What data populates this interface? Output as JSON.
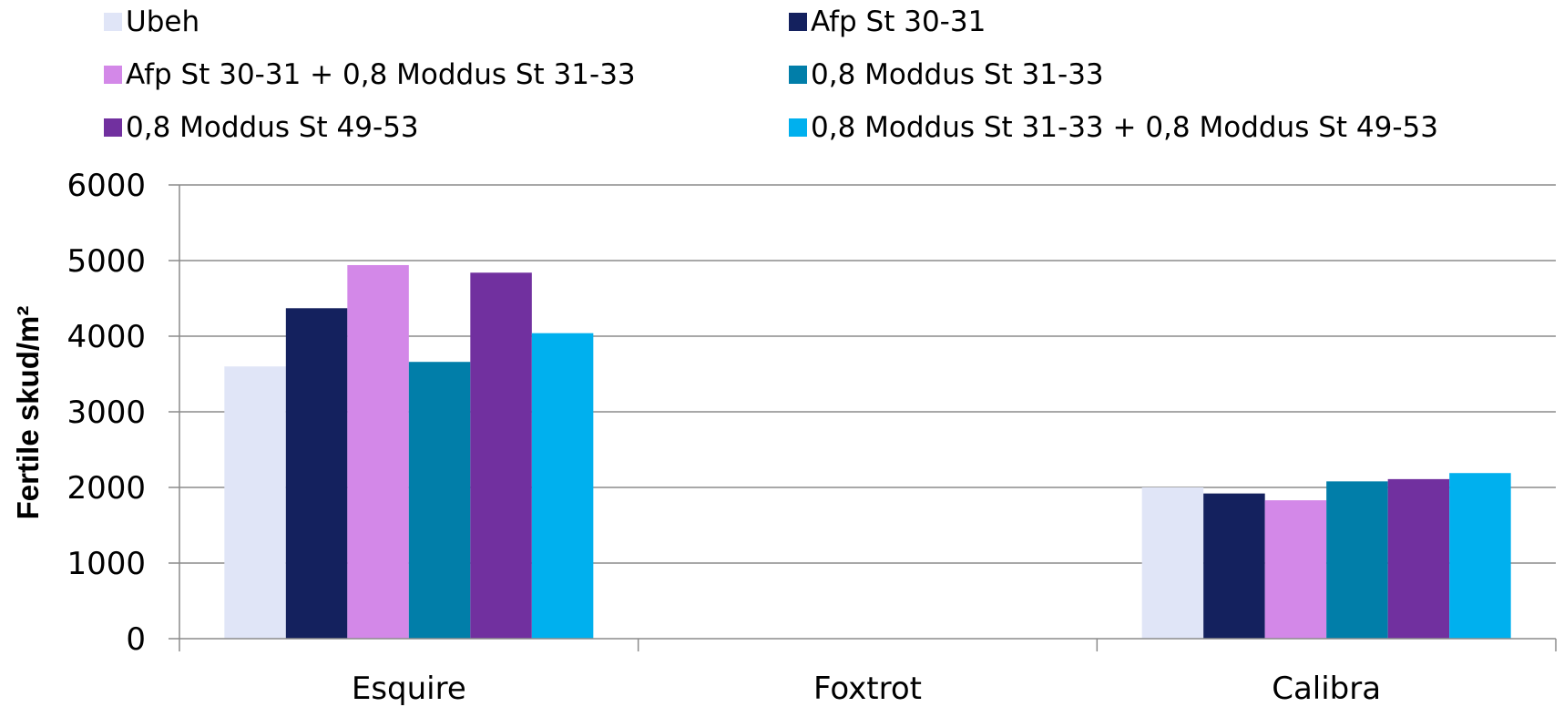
{
  "chart_data": {
    "type": "bar",
    "title": "",
    "xlabel": "",
    "ylabel": "Fertile skud/m²",
    "ylim": [
      0,
      6000
    ],
    "yticks": [
      "0",
      "1000",
      "2000",
      "3000",
      "4000",
      "5000",
      "6000"
    ],
    "grid": true,
    "legend_position": "top",
    "categories": [
      "Esquire",
      "Foxtrot",
      "Calibra"
    ],
    "series": [
      {
        "name": "Ubeh",
        "color": "#E0E5F7",
        "values": [
          3600,
          null,
          2000
        ]
      },
      {
        "name": "Afp St 30-31",
        "color": "#14215E",
        "values": [
          4370,
          null,
          1920
        ]
      },
      {
        "name": "Afp St 30-31 + 0,8 Moddus St 31-33",
        "color": "#D388E8",
        "values": [
          4940,
          null,
          1830
        ]
      },
      {
        "name": "0,8 Moddus St 31-33",
        "color": "#017EA9",
        "values": [
          3660,
          null,
          2080
        ]
      },
      {
        "name": "0,8 Moddus St 49-53",
        "color": "#71309F",
        "values": [
          4840,
          null,
          2110
        ]
      },
      {
        "name": "0,8 Moddus St 31-33 + 0,8 Moddus St 49-53",
        "color": "#00B0EE",
        "values": [
          4040,
          null,
          2190
        ]
      }
    ]
  }
}
